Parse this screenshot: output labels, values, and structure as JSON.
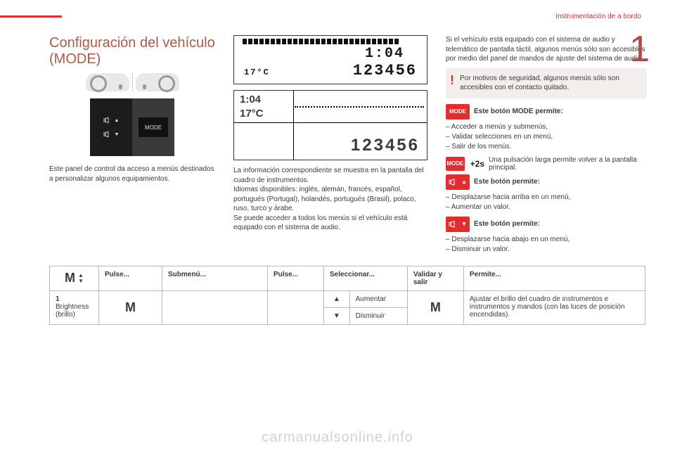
{
  "header": {
    "section": "Instrumentación de a bordo",
    "pageMarker": "1"
  },
  "left": {
    "title": "Configuración del vehículo (MODE)",
    "panel": {
      "mode_label": "MODE"
    },
    "caption": "Este panel de control da acceso a menús destinados a personalizar algunos equipamientos."
  },
  "mid": {
    "lcd1": {
      "time": "1:04",
      "temp": "17°C",
      "odo": "123456"
    },
    "lcd2": {
      "time": "1:04",
      "temp": "17°C",
      "odo": "123456"
    },
    "caption": "La información correspondiente se muestra en la pantalla del cuadro de instrumentos.\nIdiomas disponibles: inglés, alemán, francés, español, portugués (Portugal), holandés, portugués (Brasil), polaco, ruso, turco y árabe.\nSe puede acceder a todos los menús si el vehículo está equipado con el sistema de audio."
  },
  "right": {
    "intro": "Si el vehículo está equipado con el sistema de audio y telemático de pantalla táctil, algunos menús sólo son accesibles por medio del panel de mandos de ajuste del sistema de audio.",
    "alert": "Por motivos de seguridad, algunos menús sólo son accesibles con el contacto quitado.",
    "mode": {
      "label": "MODE",
      "title": "Este botón MODE permite:",
      "items": [
        "Acceder a menús y submenús,",
        "Validar selecciones en un menú,",
        "Salir de los menús."
      ]
    },
    "long": {
      "label": "MODE",
      "plus": "+2s",
      "text": "Una pulsación larga permite volver a la pantalla principal."
    },
    "up": {
      "title": "Este botón permite:",
      "items": [
        "Desplazarse hacia arriba en un menú,",
        "Aumentar un valor."
      ]
    },
    "down": {
      "title": "Este botón permite:",
      "items": [
        "Desplazarse hacia abajo en un menú,",
        "Disminuir un valor."
      ]
    }
  },
  "table": {
    "headers": {
      "m": "M",
      "pulse1": "Pulse...",
      "submenu": "Submenú...",
      "pulse2": "Pulse...",
      "select": "Seleccionar...",
      "validate": "Validar y salir",
      "permite": "Permite..."
    },
    "row": {
      "label": "1 Brightness (brillo)",
      "m1": "M",
      "up": "▲",
      "upLabel": "Aumentar",
      "down": "▼",
      "downLabel": "Disminuir",
      "m2": "M",
      "permite": "Ajustar el brillo del cuadro de instrumentos e instrumentos y mandos (con las luces de posición encendidas)."
    }
  },
  "watermark": "carmanualsonline.info"
}
